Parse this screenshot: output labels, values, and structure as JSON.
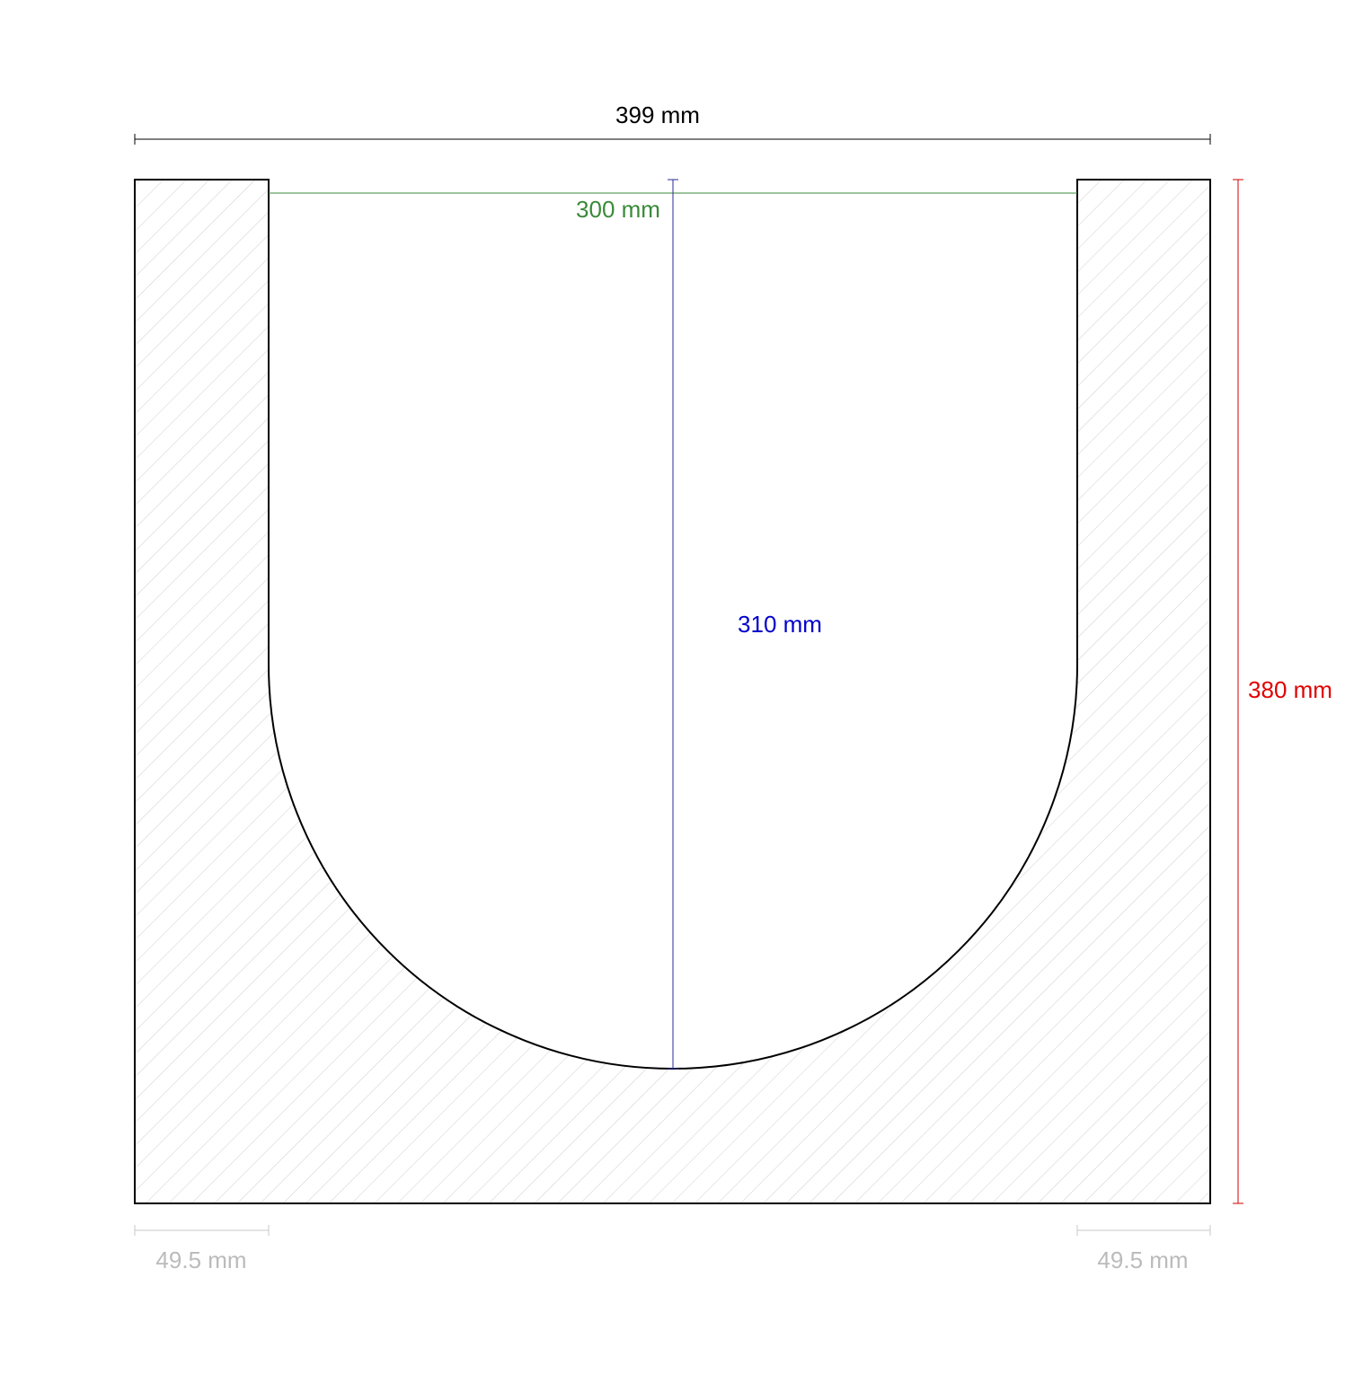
{
  "dimensions": {
    "overall_width": "399 mm",
    "inner_width": "300 mm",
    "inner_depth": "310 mm",
    "overall_height": "380 mm",
    "left_wall": "49.5 mm",
    "right_wall": "49.5 mm"
  }
}
